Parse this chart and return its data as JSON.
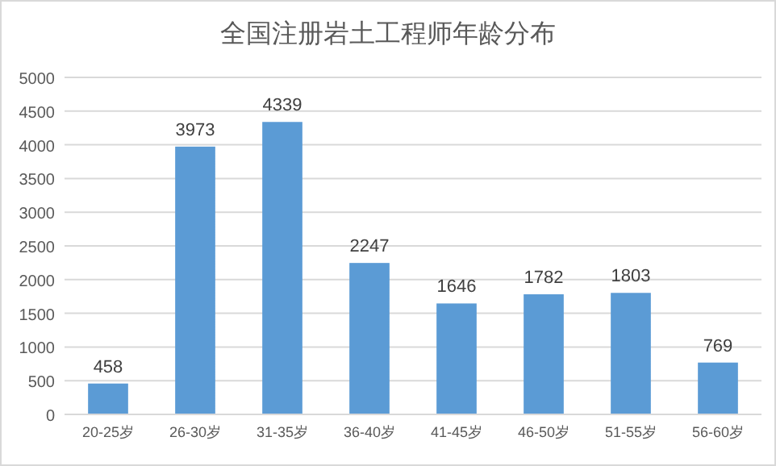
{
  "chart_data": {
    "type": "bar",
    "title": "全国注册岩土工程师年龄分布",
    "categories": [
      "20-25岁",
      "26-30岁",
      "31-35岁",
      "36-40岁",
      "41-45岁",
      "46-50岁",
      "51-55岁",
      "56-60岁"
    ],
    "values": [
      458,
      3973,
      4339,
      2247,
      1646,
      1782,
      1803,
      769
    ],
    "color": "#5b9bd5",
    "ylim": [
      0,
      5000
    ],
    "yticks": [
      0,
      500,
      1000,
      1500,
      2000,
      2500,
      3000,
      3500,
      4000,
      4500,
      5000
    ],
    "grid": "y",
    "data_labels": true
  }
}
